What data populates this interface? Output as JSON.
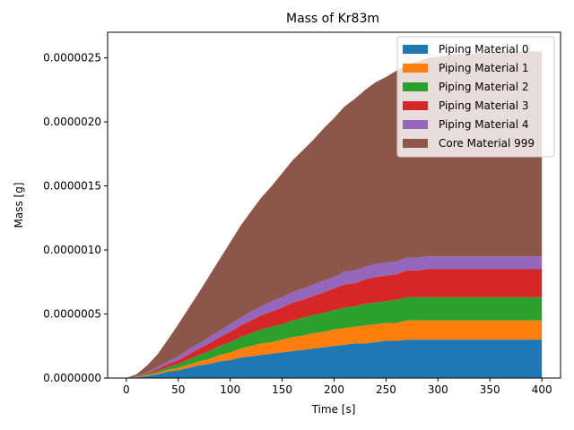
{
  "chart_data": {
    "type": "area",
    "stacked": true,
    "title": "Mass of Kr83m",
    "xlabel": "Time [s]",
    "ylabel": "Mass [g]",
    "xlim": [
      -18,
      418
    ],
    "ylim": [
      0,
      2.7e-06
    ],
    "xticks": [
      0,
      50,
      100,
      150,
      200,
      250,
      300,
      350,
      400
    ],
    "xtick_labels": [
      "0",
      "50",
      "100",
      "150",
      "200",
      "250",
      "300",
      "350",
      "400"
    ],
    "yticks": [
      0,
      5e-07,
      1e-06,
      1.5e-06,
      2e-06,
      2.5e-06
    ],
    "ytick_labels": [
      "0.0000000",
      "0.0000005",
      "0.0000010",
      "0.0000015",
      "0.0000020",
      "0.0000025"
    ],
    "legend_position": "top-right",
    "x": [
      0,
      10,
      20,
      30,
      40,
      50,
      60,
      70,
      80,
      90,
      100,
      110,
      120,
      130,
      140,
      150,
      160,
      170,
      180,
      190,
      200,
      210,
      220,
      230,
      240,
      250,
      260,
      270,
      280,
      290,
      300,
      310,
      320,
      330,
      340,
      350,
      360,
      370,
      380,
      390,
      400
    ],
    "series": [
      {
        "name": "Piping Material 0",
        "color": "#1f77b4",
        "values": [
          0,
          4e-09,
          1.5e-08,
          3e-08,
          5e-08,
          6e-08,
          8e-08,
          1e-07,
          1.1e-07,
          1.3e-07,
          1.4e-07,
          1.6e-07,
          1.7e-07,
          1.8e-07,
          1.9e-07,
          2e-07,
          2.1e-07,
          2.2e-07,
          2.3e-07,
          2.4e-07,
          2.5e-07,
          2.6e-07,
          2.7e-07,
          2.7e-07,
          2.8e-07,
          2.9e-07,
          2.9e-07,
          3e-07,
          3e-07,
          3e-07,
          3e-07,
          3e-07,
          3e-07,
          3e-07,
          3e-07,
          3e-07,
          3e-07,
          3e-07,
          3e-07,
          3e-07,
          3e-07
        ]
      },
      {
        "name": "Piping Material 1",
        "color": "#ff7f0e",
        "values": [
          0,
          2e-09,
          6e-09,
          1e-08,
          1.5e-08,
          2e-08,
          2.5e-08,
          3e-08,
          4e-08,
          5e-08,
          6e-08,
          7e-08,
          8e-08,
          9e-08,
          9e-08,
          1e-07,
          1.1e-07,
          1.1e-07,
          1.2e-07,
          1.2e-07,
          1.3e-07,
          1.3e-07,
          1.3e-07,
          1.4e-07,
          1.4e-07,
          1.4e-07,
          1.4e-07,
          1.5e-07,
          1.5e-07,
          1.5e-07,
          1.5e-07,
          1.5e-07,
          1.5e-07,
          1.5e-07,
          1.5e-07,
          1.5e-07,
          1.5e-07,
          1.5e-07,
          1.5e-07,
          1.5e-07,
          1.5e-07
        ]
      },
      {
        "name": "Piping Material 2",
        "color": "#2ca02c",
        "values": [
          0,
          2e-09,
          8e-09,
          1.5e-08,
          2e-08,
          3e-08,
          4e-08,
          5e-08,
          6e-08,
          7e-08,
          8e-08,
          9e-08,
          1e-07,
          1.1e-07,
          1.2e-07,
          1.2e-07,
          1.3e-07,
          1.4e-07,
          1.4e-07,
          1.5e-07,
          1.5e-07,
          1.6e-07,
          1.6e-07,
          1.7e-07,
          1.7e-07,
          1.7e-07,
          1.8e-07,
          1.8e-07,
          1.8e-07,
          1.8e-07,
          1.8e-07,
          1.8e-07,
          1.8e-07,
          1.8e-07,
          1.8e-07,
          1.8e-07,
          1.8e-07,
          1.8e-07,
          1.8e-07,
          1.8e-07,
          1.8e-07
        ]
      },
      {
        "name": "Piping Material 3",
        "color": "#d62728",
        "values": [
          0,
          2e-09,
          8e-09,
          1.5e-08,
          2.5e-08,
          3e-08,
          4e-08,
          5e-08,
          6e-08,
          7e-08,
          8e-08,
          9e-08,
          1e-07,
          1.1e-07,
          1.2e-07,
          1.3e-07,
          1.4e-07,
          1.4e-07,
          1.5e-07,
          1.6e-07,
          1.7e-07,
          1.8e-07,
          1.8e-07,
          1.9e-07,
          2e-07,
          2e-07,
          2e-07,
          2.1e-07,
          2.1e-07,
          2.2e-07,
          2.2e-07,
          2.2e-07,
          2.2e-07,
          2.2e-07,
          2.2e-07,
          2.2e-07,
          2.2e-07,
          2.2e-07,
          2.2e-07,
          2.2e-07,
          2.2e-07
        ]
      },
      {
        "name": "Piping Material 4",
        "color": "#9467bd",
        "values": [
          0,
          2e-09,
          8e-09,
          1.5e-08,
          2e-08,
          3e-08,
          4e-08,
          4e-08,
          5e-08,
          5e-08,
          6e-08,
          6e-08,
          7e-08,
          7e-08,
          8e-08,
          8e-08,
          8e-08,
          9e-08,
          9e-08,
          9e-08,
          9e-08,
          1e-07,
          1e-07,
          1e-07,
          1e-07,
          1e-07,
          1e-07,
          1e-07,
          1e-07,
          1e-07,
          1e-07,
          1e-07,
          1e-07,
          1e-07,
          1e-07,
          1e-07,
          1e-07,
          1e-07,
          1e-07,
          1e-07,
          1e-07
        ]
      },
      {
        "name": "Core Material 999",
        "color": "#8c564b",
        "values": [
          0,
          1.8e-08,
          5.3e-08,
          1e-07,
          1.7e-07,
          2.5e-07,
          3.2e-07,
          4e-07,
          4.8e-07,
          5.6e-07,
          6.4e-07,
          7.2e-07,
          7.8e-07,
          8.5e-07,
          9e-07,
          9.7e-07,
          1.03e-06,
          1.08e-06,
          1.13e-06,
          1.19e-06,
          1.24e-06,
          1.29e-06,
          1.34e-06,
          1.38e-06,
          1.42e-06,
          1.45e-06,
          1.49e-06,
          1.51e-06,
          1.53e-06,
          1.55e-06,
          1.56e-06,
          1.57e-06,
          1.58e-06,
          1.58e-06,
          1.59e-06,
          1.59e-06,
          1.6e-06,
          1.6e-06,
          1.6e-06,
          1.6e-06,
          1.6e-06
        ]
      }
    ]
  }
}
